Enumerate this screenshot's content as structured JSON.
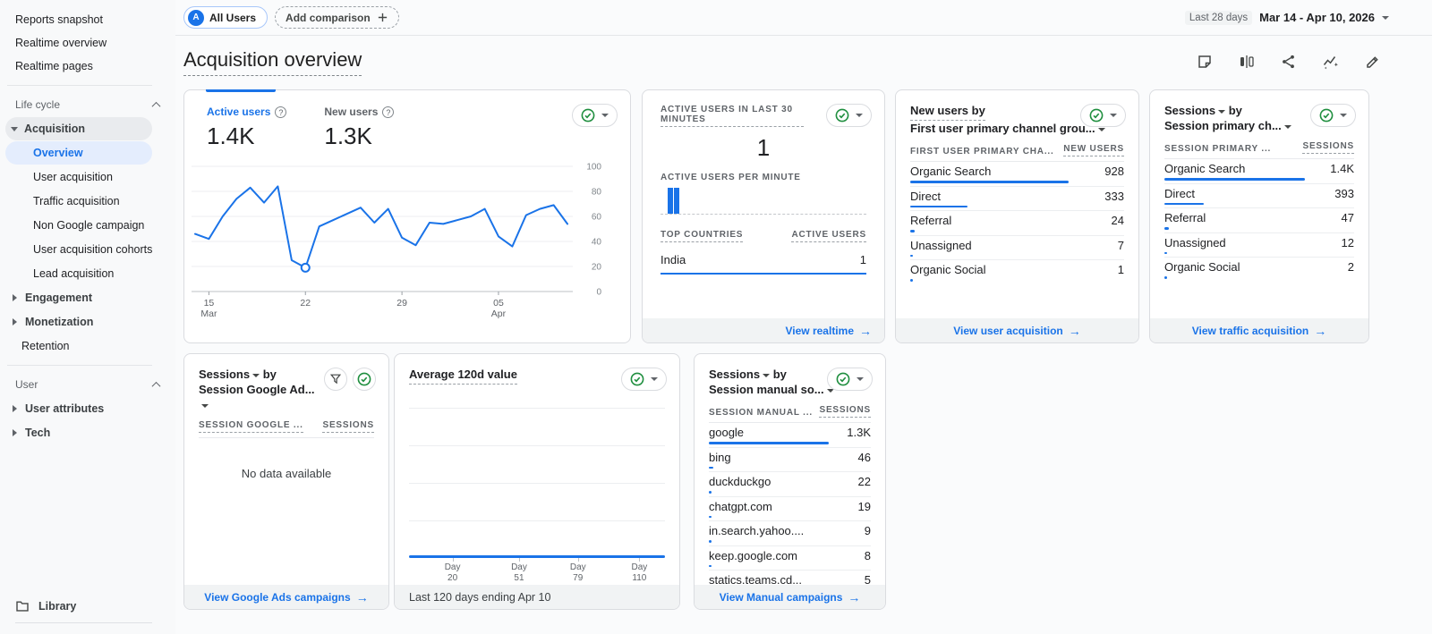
{
  "topbar": {
    "all_users_badge": "A",
    "all_users_label": "All Users",
    "add_comparison_label": "Add comparison",
    "date_preset": "Last 28 days",
    "date_range": "Mar 14 - Apr 10, 2026"
  },
  "header": {
    "title": "Acquisition overview",
    "action_icons": [
      "note-icon",
      "compare-icon",
      "share-icon",
      "insights-icon",
      "edit-icon"
    ]
  },
  "sidebar": {
    "items": [
      {
        "type": "top",
        "label": "Reports snapshot"
      },
      {
        "type": "top",
        "label": "Realtime overview"
      },
      {
        "type": "top",
        "label": "Realtime pages"
      },
      {
        "type": "divider"
      },
      {
        "type": "section",
        "label": "Life cycle"
      },
      {
        "type": "parent",
        "label": "Acquisition",
        "expanded": true,
        "pill": true
      },
      {
        "type": "child",
        "label": "Overview",
        "selected": true
      },
      {
        "type": "child",
        "label": "User acquisition"
      },
      {
        "type": "child",
        "label": "Traffic acquisition"
      },
      {
        "type": "child",
        "label": "Non Google campaign"
      },
      {
        "type": "child",
        "label": "User acquisition cohorts"
      },
      {
        "type": "child",
        "label": "Lead acquisition"
      },
      {
        "type": "parent",
        "label": "Engagement",
        "expanded": false
      },
      {
        "type": "parent",
        "label": "Monetization",
        "expanded": false
      },
      {
        "type": "plain",
        "label": "Retention"
      },
      {
        "type": "divider"
      },
      {
        "type": "section",
        "label": "User"
      },
      {
        "type": "parent",
        "label": "User attributes",
        "expanded": false
      },
      {
        "type": "parent",
        "label": "Tech",
        "expanded": false
      }
    ],
    "library_label": "Library"
  },
  "cards": {
    "users_trend": {
      "tabs": [
        {
          "label": "Active users",
          "value": "1.4K",
          "selected": true
        },
        {
          "label": "New users",
          "value": "1.3K",
          "selected": false
        }
      ],
      "chart_data": {
        "type": "line",
        "title": "Active users trend (last 28 days)",
        "series": [
          {
            "name": "Active users",
            "values": [
              46,
              42,
              60,
              74,
              83,
              71,
              84,
              25,
              19,
              52,
              57,
              62,
              67,
              55,
              66,
              43,
              37,
              55,
              54,
              57,
              60,
              66,
              44,
              36,
              61,
              66,
              69,
              54
            ]
          }
        ],
        "ylim": [
          0,
          100
        ],
        "y_ticks": [
          0,
          20,
          40,
          60,
          80,
          100
        ],
        "x_ticks": [
          "15 Mar",
          "22",
          "29",
          "05 Apr"
        ],
        "x_tick_indices": [
          1,
          8,
          15,
          22
        ],
        "marker_index": 8,
        "grid": "horizontal",
        "legend": "none"
      }
    },
    "realtime": {
      "title": "ACTIVE USERS IN LAST 30 MINUTES",
      "value": "1",
      "per_minute_label": "ACTIVE USERS PER MINUTE",
      "chart_data": {
        "type": "bar",
        "title": "Active users per minute (30 slots)",
        "values": [
          0,
          1,
          1,
          0,
          0,
          0,
          0,
          0,
          0,
          0,
          0,
          0,
          0,
          0,
          0,
          0,
          0,
          0,
          0,
          0,
          0,
          0,
          0,
          0,
          0,
          0,
          0,
          0,
          0,
          0
        ],
        "ylim": [
          0,
          1
        ]
      },
      "table": {
        "dim_header": "TOP COUNTRIES",
        "metric_header": "ACTIVE USERS",
        "rows": [
          {
            "label": "India",
            "value": "1"
          }
        ]
      },
      "footer_link": "View realtime"
    },
    "new_users": {
      "title_line1": "New users by",
      "title_line2": "First user primary channel grou...",
      "dim_header": "FIRST USER PRIMARY CHA...",
      "metric_header": "NEW USERS",
      "rows": [
        {
          "label": "Organic Search",
          "value": "928"
        },
        {
          "label": "Direct",
          "value": "333"
        },
        {
          "label": "Referral",
          "value": "24"
        },
        {
          "label": "Unassigned",
          "value": "7"
        },
        {
          "label": "Organic Social",
          "value": "1"
        }
      ],
      "footer_link": "View user acquisition"
    },
    "sessions_channel": {
      "title_metric": "Sessions",
      "title_suffix": "by",
      "title_line2": "Session primary ch...",
      "dim_header": "SESSION PRIMARY ...",
      "metric_header": "SESSIONS",
      "rows": [
        {
          "label": "Organic Search",
          "value": "1.4K"
        },
        {
          "label": "Direct",
          "value": "393"
        },
        {
          "label": "Referral",
          "value": "47"
        },
        {
          "label": "Unassigned",
          "value": "12"
        },
        {
          "label": "Organic Social",
          "value": "2"
        }
      ],
      "footer_link": "View traffic acquisition"
    },
    "google_ads": {
      "title_metric": "Sessions",
      "title_suffix": "by",
      "title_line2": "Session Google Ad...",
      "dim_header": "SESSION GOOGLE ...",
      "metric_header": "SESSIONS",
      "empty_text": "No data available",
      "footer_link": "View Google Ads campaigns"
    },
    "avg_120d": {
      "title": "Average 120d value",
      "chart_data": {
        "type": "line",
        "title": "Average 120d value",
        "x_ticks": [
          "Day 20",
          "Day 51",
          "Day 79",
          "Day 110"
        ],
        "tick_pcts": [
          17,
          43,
          66,
          90
        ],
        "flat_value": 0,
        "ylim": [
          0,
          1
        ],
        "grid": "horizontal"
      },
      "footer_text": "Last 120 days ending Apr 10"
    },
    "manual_source": {
      "title_metric": "Sessions",
      "title_suffix": "by",
      "title_line2": "Session manual so...",
      "dim_header": "SESSION MANUAL ...",
      "metric_header": "SESSIONS",
      "rows": [
        {
          "label": "google",
          "value": "1.3K"
        },
        {
          "label": "bing",
          "value": "46"
        },
        {
          "label": "duckduckgo",
          "value": "22"
        },
        {
          "label": "chatgpt.com",
          "value": "19"
        },
        {
          "label": "in.search.yahoo....",
          "value": "9"
        },
        {
          "label": "keep.google.com",
          "value": "8"
        },
        {
          "label": "statics.teams.cd...",
          "value": "5"
        }
      ],
      "footer_link": "View Manual campaigns"
    }
  },
  "colors": {
    "accent_blue": "#1a73e8",
    "check_green": "#1e8e3e",
    "text_primary": "#202124",
    "text_secondary": "#5f6368",
    "card_border": "#dadce0",
    "footer_bg": "#f1f3f4",
    "selected_pill_bg": "#e4edfd",
    "parent_pill_bg": "#e9ebee"
  }
}
